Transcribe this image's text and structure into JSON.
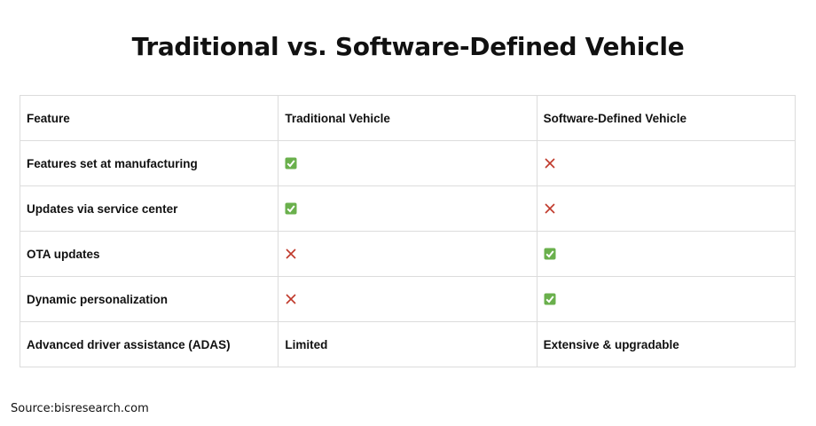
{
  "title": "Traditional vs. Software-Defined Vehicle",
  "table": {
    "header": [
      "Feature",
      "Traditional Vehicle",
      "Software-Defined Vehicle"
    ],
    "rows": [
      [
        "Features set at manufacturing",
        true,
        false
      ],
      [
        "Updates via service center",
        true,
        false
      ],
      [
        "OTA updates",
        false,
        true
      ],
      [
        "Dynamic personalization",
        false,
        true
      ],
      [
        "Advanced driver assistance (ADAS)",
        "Limited",
        "Extensive & upgradable"
      ]
    ]
  },
  "source": "Source:bisresearch.com"
}
